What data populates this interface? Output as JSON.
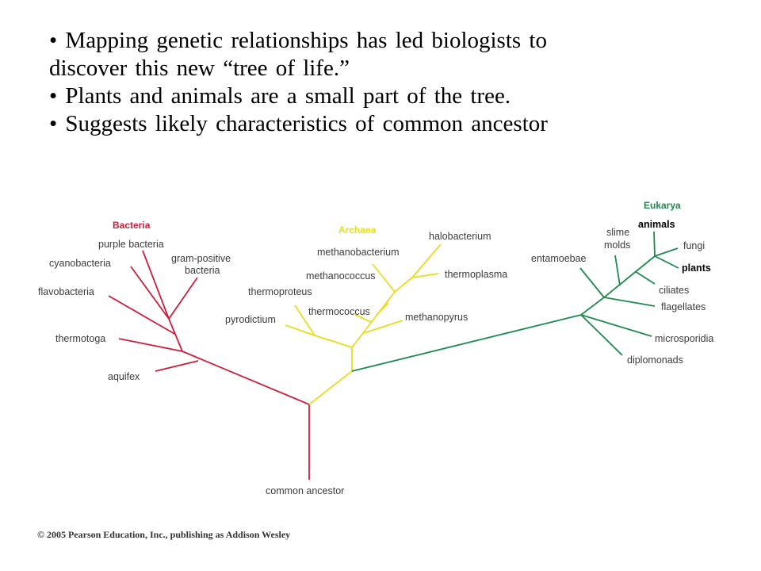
{
  "bullets": [
    "• Mapping genetic relationships has led biologists to",
    "discover this new “tree of life.”",
    "• Plants and animals are a small part of the tree.",
    "• Suggests likely characteristics of common ancestor"
  ],
  "tree": {
    "colors": {
      "bacteria": "#cc1e3d",
      "archaea": "#e8dc1e",
      "eukarya": "#1e8a4f"
    },
    "domains": {
      "bacteria": "Bacteria",
      "archaea": "Archaea",
      "eukarya": "Eukarya"
    },
    "root_label": "common ancestor",
    "bacteria_taxa": {
      "purple_bacteria": "purple bacteria",
      "gram_positive_line1": "gram-positive",
      "gram_positive_line2": "bacteria",
      "cyanobacteria": "cyanobacteria",
      "flavobacteria": "flavobacteria",
      "thermotoga": "thermotoga",
      "aquifex": "aquifex"
    },
    "archaea_taxa": {
      "halobacterium": "halobacterium",
      "methanobacterium": "methanobacterium",
      "thermoplasma": "thermoplasma",
      "methanococcus": "methanococcus",
      "thermoproteus": "thermoproteus",
      "thermococcus": "thermococcus",
      "pyrodictium": "pyrodictium",
      "methanopyrus": "methanopyrus"
    },
    "eukarya_taxa": {
      "slime_molds_line1": "slime",
      "slime_molds_line2": "molds",
      "animals": "animals",
      "fungi": "fungi",
      "plants": "plants",
      "entamoebae": "entamoebae",
      "ciliates": "ciliates",
      "flagellates": "flagellates",
      "microsporidia": "microsporidia",
      "diplomonads": "diplomonads"
    }
  },
  "copyright": "© 2005 Pearson Education, Inc., publishing as Addison Wesley"
}
